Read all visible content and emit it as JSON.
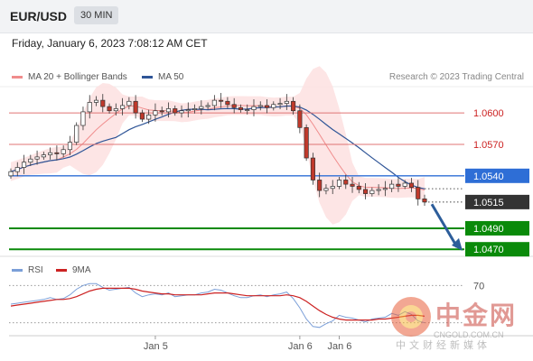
{
  "header": {
    "symbol": "EUR/USD",
    "timeframe": "30 MIN",
    "datetime": "Friday, January 6, 2023 7:08:12 AM CET"
  },
  "legend": {
    "ma20": "MA 20 + Bollinger Bands",
    "ma50": "MA 50",
    "credit": "Research © 2023 Trading Central",
    "rsi": "RSI",
    "rsi_ma": "9MA"
  },
  "colors": {
    "ma20": "#f08c8c",
    "ma50": "#2f5597",
    "resistance": "#e07474",
    "pivot": "#2e6ed6",
    "support": "#0a8a0a",
    "current": "#333333",
    "bands_fill": "#fde2e2",
    "candle_up": "#ffffff",
    "candle_down": "#c0392b",
    "rsi_line": "#7b9fd8",
    "rsi_ma_line": "#cc2222",
    "arrow": "#2c5d9a"
  },
  "chart_data": {
    "type": "candlestick",
    "levels": [
      {
        "label": "1.0600",
        "value": 1.06,
        "kind": "resistance"
      },
      {
        "label": "1.0570",
        "value": 1.057,
        "kind": "resistance"
      },
      {
        "label": "1.0540",
        "value": 1.054,
        "kind": "pivot"
      },
      {
        "label": "1.0515",
        "value": 1.0515,
        "kind": "current"
      },
      {
        "label": "1.0490",
        "value": 1.049,
        "kind": "support"
      },
      {
        "label": "1.0470",
        "value": 1.047,
        "kind": "support"
      }
    ],
    "price_ylim": [
      1.0465,
      1.0625
    ],
    "x_ticks": [
      {
        "label": "Jan 5",
        "index": 22
      },
      {
        "label": "Jan 6",
        "index": 44
      },
      {
        "label": "Jan 6",
        "index": 50
      }
    ],
    "close": [
      1.0544,
      1.0548,
      1.0553,
      1.0556,
      1.0558,
      1.056,
      1.0562,
      1.0561,
      1.0565,
      1.0572,
      1.0588,
      1.0601,
      1.061,
      1.0612,
      1.0606,
      1.0602,
      1.0604,
      1.0607,
      1.0611,
      1.06,
      1.0594,
      1.0598,
      1.0602,
      1.0601,
      1.0604,
      1.06,
      1.0602,
      1.0603,
      1.0604,
      1.0606,
      1.0607,
      1.0612,
      1.0611,
      1.0608,
      1.0605,
      1.0603,
      1.0603,
      1.0606,
      1.0607,
      1.0605,
      1.0608,
      1.0609,
      1.0611,
      1.0602,
      1.0586,
      1.0557,
      1.0536,
      1.0526,
      1.0528,
      1.053,
      1.0536,
      1.0532,
      1.053,
      1.0527,
      1.0523,
      1.0526,
      1.0527,
      1.0528,
      1.0532,
      1.053,
      1.0533,
      1.0529,
      1.0518,
      1.0515
    ],
    "rsi": {
      "labels": [
        "70"
      ],
      "ylim": [
        20,
        80
      ],
      "hline": 70,
      "values": [
        50,
        51,
        52,
        53,
        54,
        55,
        57,
        55,
        56,
        60,
        66,
        70,
        72,
        72,
        68,
        65,
        66,
        67,
        68,
        62,
        58,
        60,
        61,
        60,
        62,
        58,
        59,
        60,
        60,
        62,
        63,
        66,
        65,
        62,
        59,
        57,
        57,
        59,
        60,
        58,
        60,
        61,
        63,
        56,
        46,
        34,
        26,
        25,
        29,
        32,
        38,
        36,
        35,
        33,
        31,
        34,
        35,
        36,
        40,
        38,
        42,
        39,
        32,
        30
      ],
      "ma": [
        48,
        49,
        50,
        51,
        52,
        53,
        54,
        55,
        55,
        56,
        58,
        61,
        64,
        66,
        67,
        67,
        67,
        67,
        67,
        66,
        64,
        63,
        62,
        61,
        61,
        60,
        60,
        60,
        60,
        60,
        61,
        62,
        62,
        62,
        61,
        60,
        59,
        59,
        59,
        59,
        59,
        59,
        60,
        59,
        57,
        53,
        48,
        43,
        39,
        36,
        34,
        33,
        33,
        33,
        33,
        33,
        34,
        34,
        35,
        36,
        37,
        38,
        38,
        37
      ]
    }
  },
  "watermark": {
    "cn": "中金网",
    "url": "CNGOLD.COM.CN",
    "sub": "中文财经新媒体"
  }
}
